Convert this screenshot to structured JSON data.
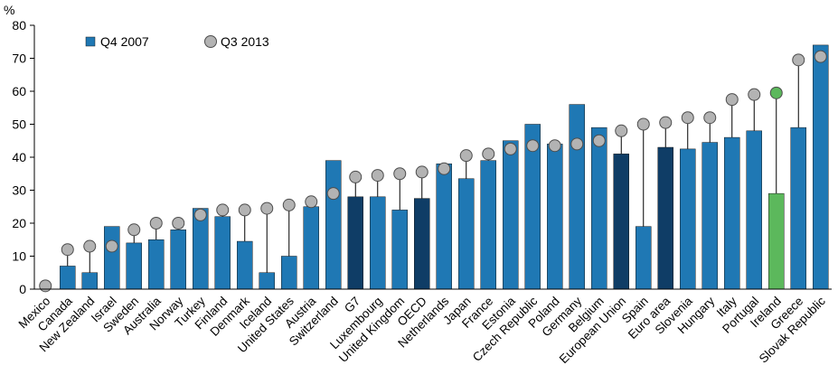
{
  "chart_data": {
    "type": "bar",
    "unit_label": "%",
    "ylim": [
      0,
      80
    ],
    "yticks": [
      0,
      10,
      20,
      30,
      40,
      50,
      60,
      70,
      80
    ],
    "grid": false,
    "legend_position": "top-left",
    "categories": [
      "Mexico",
      "Canada",
      "New Zealand",
      "Israel",
      "Sweden",
      "Australia",
      "Norway",
      "Turkey",
      "Finland",
      "Denmark",
      "Iceland",
      "United States",
      "Austria",
      "Switzerland",
      "G7",
      "Luxembourg",
      "United Kingdom",
      "OECD",
      "Netherlands",
      "Japan",
      "France",
      "Estonia",
      "Czech Republic",
      "Poland",
      "Germany",
      "Belgium",
      "European Union",
      "Spain",
      "Euro area",
      "Slovenia",
      "Hungary",
      "Italy",
      "Portugal",
      "Ireland",
      "Greece",
      "Slovak Republic"
    ],
    "series": [
      {
        "name": "Q4 2007",
        "style": "bar",
        "values": [
          null,
          7,
          5,
          19,
          14,
          15,
          18,
          24.5,
          22,
          14.5,
          5,
          10,
          25,
          39,
          28,
          28,
          24,
          27.5,
          38,
          33.5,
          39,
          45,
          50,
          44,
          56,
          49,
          41,
          19,
          43,
          42.5,
          44.5,
          46,
          48,
          29,
          49,
          74
        ]
      },
      {
        "name": "Q3 2013",
        "style": "marker",
        "values": [
          1,
          12,
          13,
          13,
          18,
          20,
          20,
          22.5,
          24,
          24,
          24.5,
          25.5,
          26.5,
          29,
          34,
          34.5,
          35,
          35.5,
          36.5,
          40.5,
          41,
          42.5,
          43.5,
          43.5,
          44,
          45,
          48,
          50,
          50.5,
          52,
          52,
          57.5,
          59,
          59.5,
          69.5,
          70.5
        ]
      }
    ],
    "colors": {
      "bar_default": "#1f78b4",
      "bar_aggregate": "#0f3d66",
      "bar_highlight": "#5cb85c",
      "marker_default": "#b3b3b3",
      "marker_highlight": "#5cb85c",
      "stem": "#000000"
    },
    "aggregate_categories": [
      "G7",
      "OECD",
      "European Union",
      "Euro area"
    ],
    "highlight_categories": [
      "Ireland"
    ]
  }
}
